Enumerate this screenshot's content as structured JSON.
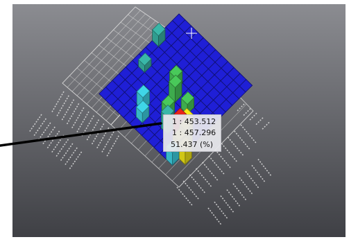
{
  "viewport": {
    "background_top": "#8b8c91",
    "background_bottom": "#3f4045",
    "surround": "#ffffff"
  },
  "plot": {
    "palette": {
      "low": "#1f1fd6",
      "cyan": "#3fd6e8",
      "teal": "#39b7a8",
      "green": "#49c95a",
      "yellow": "#f5ea1a",
      "red": "#e8231a",
      "grid": "#d9d9d9"
    }
  },
  "tooltip": {
    "line1": "1 : 453.512",
    "line2": "1 : 457.296",
    "line3": "51.437 (%)"
  },
  "pointer": {
    "color": "#000000"
  }
}
